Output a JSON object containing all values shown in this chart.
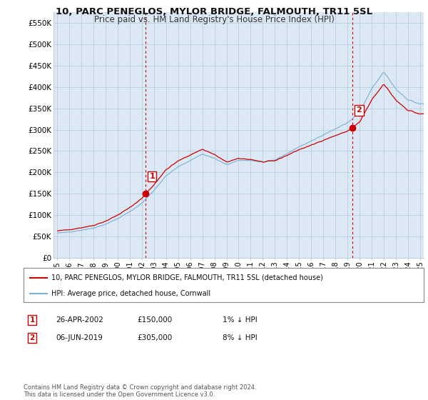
{
  "title": "10, PARC PENEGLOS, MYLOR BRIDGE, FALMOUTH, TR11 5SL",
  "subtitle": "Price paid vs. HM Land Registry's House Price Index (HPI)",
  "yticks": [
    0,
    50000,
    100000,
    150000,
    200000,
    250000,
    300000,
    350000,
    400000,
    450000,
    500000,
    550000
  ],
  "ytick_labels": [
    "£0",
    "£50K",
    "£100K",
    "£150K",
    "£200K",
    "£250K",
    "£300K",
    "£350K",
    "£400K",
    "£450K",
    "£500K",
    "£550K"
  ],
  "xlim_start": 1994.7,
  "xlim_end": 2025.3,
  "ylim_min": 0,
  "ylim_max": 575000,
  "sale1_x": 2002.32,
  "sale1_y": 150000,
  "sale1_label": "1",
  "sale2_x": 2019.43,
  "sale2_y": 305000,
  "sale2_label": "2",
  "line_color_property": "#cc0000",
  "line_color_hpi": "#7bafd4",
  "background_color": "#dce9f5",
  "grid_color": "#b8cfe0",
  "legend_entry1": "10, PARC PENEGLOS, MYLOR BRIDGE, FALMOUTH, TR11 5SL (detached house)",
  "legend_entry2": "HPI: Average price, detached house, Cornwall",
  "table_row1": [
    "1",
    "26-APR-2002",
    "£150,000",
    "1% ↓ HPI"
  ],
  "table_row2": [
    "2",
    "06-JUN-2019",
    "£305,000",
    "8% ↓ HPI"
  ],
  "footnote": "Contains HM Land Registry data © Crown copyright and database right 2024.\nThis data is licensed under the Open Government Licence v3.0.",
  "title_fontsize": 9.5,
  "subtitle_fontsize": 8.5
}
